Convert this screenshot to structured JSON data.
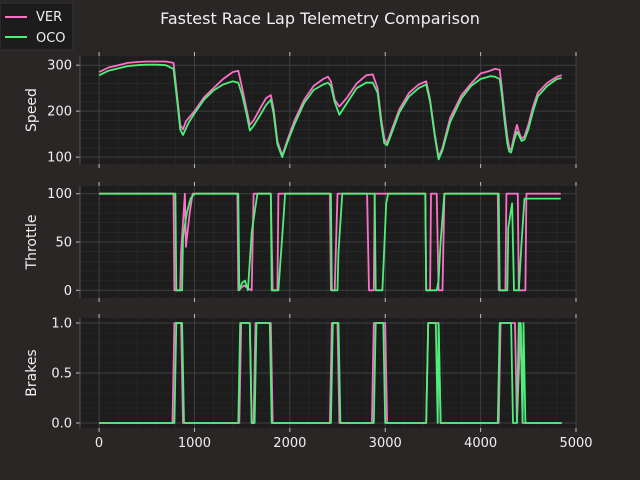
{
  "chart_data": {
    "type": "line",
    "title": "Fastest Race Lap Telemetry Comparison",
    "legend": {
      "placement": "top-left",
      "entries": [
        "VER",
        "OCO"
      ]
    },
    "grid": true,
    "xlim": [
      -200,
      5000
    ],
    "x_ticks": [
      0,
      1000,
      2000,
      3000,
      4000,
      5000
    ],
    "colors": {
      "VER": "#ff6ec7",
      "OCO": "#4cf079",
      "background": "#292625",
      "axes": "#1d1d1d",
      "grid": "#3e3e3e"
    },
    "panels": [
      {
        "ylabel": "Speed",
        "ylim": [
          85,
          320
        ],
        "y_ticks": [
          100,
          200,
          300
        ],
        "series": [
          {
            "name": "VER",
            "x": [
              0,
              100,
              200,
              300,
              400,
              500,
              600,
              700,
              780,
              820,
              850,
              880,
              910,
              940,
              1000,
              1100,
              1200,
              1300,
              1400,
              1460,
              1500,
              1550,
              1580,
              1620,
              1700,
              1750,
              1800,
              1830,
              1870,
              1920,
              1980,
              2050,
              2150,
              2250,
              2350,
              2400,
              2430,
              2470,
              2520,
              2600,
              2700,
              2800,
              2870,
              2920,
              2960,
              2990,
              3020,
              3060,
              3150,
              3250,
              3350,
              3430,
              3470,
              3520,
              3560,
              3600,
              3680,
              3800,
              3900,
              4000,
              4100,
              4150,
              4200,
              4220,
              4250,
              4280,
              4300,
              4320,
              4350,
              4380,
              4400,
              4430,
              4460,
              4500,
              4550,
              4600,
              4700,
              4800,
              4850
            ],
            "y": [
              285,
              295,
              300,
              305,
              307,
              308,
              308,
              308,
              305,
              230,
              170,
              160,
              178,
              185,
              200,
              230,
              250,
              270,
              285,
              288,
              250,
              200,
              170,
              180,
              210,
              228,
              235,
              205,
              135,
              103,
              140,
              180,
              225,
              255,
              270,
              275,
              265,
              225,
              210,
              230,
              260,
              278,
              280,
              250,
              180,
              140,
              130,
              155,
              205,
              240,
              258,
              265,
              225,
              150,
              100,
              120,
              185,
              235,
              260,
              282,
              288,
              292,
              290,
              255,
              195,
              145,
              120,
              115,
              145,
              170,
              155,
              140,
              145,
              170,
              210,
              240,
              262,
              275,
              278
            ]
          },
          {
            "name": "OCO",
            "x": [
              0,
              100,
              200,
              300,
              400,
              500,
              600,
              700,
              780,
              820,
              850,
              880,
              910,
              940,
              1000,
              1100,
              1200,
              1300,
              1400,
              1460,
              1500,
              1550,
              1580,
              1620,
              1700,
              1750,
              1800,
              1830,
              1870,
              1920,
              1980,
              2050,
              2150,
              2250,
              2350,
              2400,
              2430,
              2470,
              2520,
              2600,
              2700,
              2800,
              2870,
              2920,
              2960,
              2990,
              3020,
              3060,
              3150,
              3250,
              3350,
              3430,
              3470,
              3520,
              3560,
              3600,
              3680,
              3800,
              3900,
              4000,
              4100,
              4150,
              4200,
              4220,
              4250,
              4280,
              4300,
              4320,
              4350,
              4380,
              4400,
              4430,
              4460,
              4500,
              4550,
              4600,
              4700,
              4800,
              4850
            ],
            "y": [
              278,
              288,
              293,
              298,
              300,
              301,
              301,
              300,
              292,
              220,
              160,
              148,
              162,
              175,
              195,
              225,
              245,
              258,
              265,
              262,
              235,
              190,
              158,
              168,
              195,
              213,
              225,
              195,
              128,
              100,
              135,
              172,
              218,
              246,
              258,
              262,
              255,
              220,
              192,
              218,
              250,
              262,
              262,
              240,
              170,
              130,
              126,
              148,
              198,
              232,
              250,
              258,
              220,
              145,
              95,
              115,
              176,
              228,
              255,
              270,
              276,
              275,
              270,
              240,
              180,
              130,
              112,
              110,
              135,
              155,
              148,
              135,
              138,
              160,
              200,
              232,
              255,
              270,
              272
            ]
          }
        ]
      },
      {
        "ylabel": "Throttle",
        "ylim": [
          -8,
          108
        ],
        "y_ticks": [
          0,
          50,
          100
        ],
        "series": [
          {
            "name": "VER",
            "x": [
              0,
              780,
              790,
              850,
              860,
              900,
              910,
              950,
              980,
              1020,
              1450,
              1460,
              1520,
              1560,
              1600,
              1620,
              1800,
              1820,
              1870,
              1880,
              1960,
              1970,
              2420,
              2430,
              2470,
              2500,
              2510,
              2810,
              2830,
              2880,
              2890,
              2960,
              2980,
              3420,
              3430,
              3470,
              3480,
              3540,
              3560,
              3600,
              3620,
              4180,
              4190,
              4260,
              4270,
              4370,
              4390,
              4400,
              4410,
              4470,
              4480,
              4500,
              4840
            ],
            "y": [
              100,
              100,
              0,
              0,
              40,
              100,
              45,
              80,
              100,
              100,
              100,
              0,
              5,
              2,
              0,
              100,
              100,
              0,
              0,
              100,
              100,
              100,
              100,
              0,
              0,
              100,
              100,
              100,
              0,
              0,
              100,
              100,
              100,
              100,
              0,
              0,
              100,
              100,
              0,
              0,
              100,
              100,
              0,
              0,
              100,
              100,
              100,
              0,
              0,
              0,
              100,
              100,
              100
            ]
          },
          {
            "name": "OCO",
            "x": [
              0,
              800,
              810,
              870,
              880,
              920,
              960,
              1000,
              1460,
              1470,
              1500,
              1530,
              1560,
              1580,
              1600,
              1660,
              1680,
              1800,
              1810,
              1880,
              1930,
              1950,
              2430,
              2440,
              2500,
              2510,
              2550,
              2570,
              2890,
              2900,
              2970,
              3010,
              3030,
              3420,
              3430,
              3540,
              3560,
              3580,
              3620,
              4190,
              4200,
              4280,
              4290,
              4330,
              4350,
              4380,
              4400,
              4430,
              4460,
              4490,
              4500,
              4840
            ],
            "y": [
              100,
              100,
              0,
              0,
              55,
              80,
              95,
              100,
              100,
              0,
              8,
              10,
              0,
              30,
              60,
              100,
              100,
              100,
              0,
              0,
              70,
              100,
              100,
              0,
              0,
              40,
              100,
              100,
              100,
              0,
              0,
              90,
              100,
              100,
              0,
              0,
              10,
              50,
              100,
              100,
              0,
              0,
              65,
              90,
              0,
              0,
              0,
              50,
              95,
              95,
              95,
              95
            ]
          }
        ]
      },
      {
        "ylabel": "Brakes",
        "ylim": [
          -0.05,
          1.05
        ],
        "y_ticks": [
          0.0,
          0.5,
          1.0
        ],
        "tick_labels": [
          "0.0",
          "0.5",
          "1.0"
        ],
        "series": [
          {
            "name": "VER",
            "x": [
              0,
              770,
              790,
              860,
              880,
              1470,
              1490,
              1580,
              1600,
              1620,
              1640,
              1800,
              1820,
              1900,
              1920,
              2420,
              2440,
              2500,
              2520,
              2860,
              2880,
              3000,
              3020,
              3430,
              3450,
              3560,
              3580,
              4190,
              4210,
              4360,
              4380,
              4420,
              4440,
              4480,
              4850
            ],
            "y": [
              0,
              0,
              1,
              1,
              0,
              0,
              1,
              1,
              0,
              0,
              1,
              1,
              0,
              0,
              0,
              0,
              1,
              1,
              0,
              0,
              1,
              1,
              0,
              0,
              1,
              1,
              0,
              0,
              1,
              1,
              0,
              1,
              0,
              0,
              0
            ]
          },
          {
            "name": "OCO",
            "x": [
              0,
              790,
              810,
              870,
              890,
              1460,
              1480,
              1580,
              1600,
              1630,
              1650,
              1790,
              1810,
              1890,
              1910,
              2430,
              2450,
              2510,
              2530,
              2880,
              2900,
              2980,
              3000,
              3430,
              3450,
              3530,
              3550,
              3560,
              3580,
              4180,
              4200,
              4320,
              4340,
              4380,
              4400,
              4420,
              4440,
              4450,
              4470,
              4850
            ],
            "y": [
              0,
              0,
              1,
              1,
              0,
              0,
              1,
              1,
              0,
              0,
              1,
              1,
              0,
              0,
              0,
              0,
              1,
              1,
              0,
              0,
              1,
              1,
              0,
              0,
              1,
              1,
              0,
              1,
              0,
              0,
              1,
              1,
              0,
              0,
              1,
              1,
              0,
              1,
              0,
              0
            ]
          }
        ]
      }
    ]
  }
}
